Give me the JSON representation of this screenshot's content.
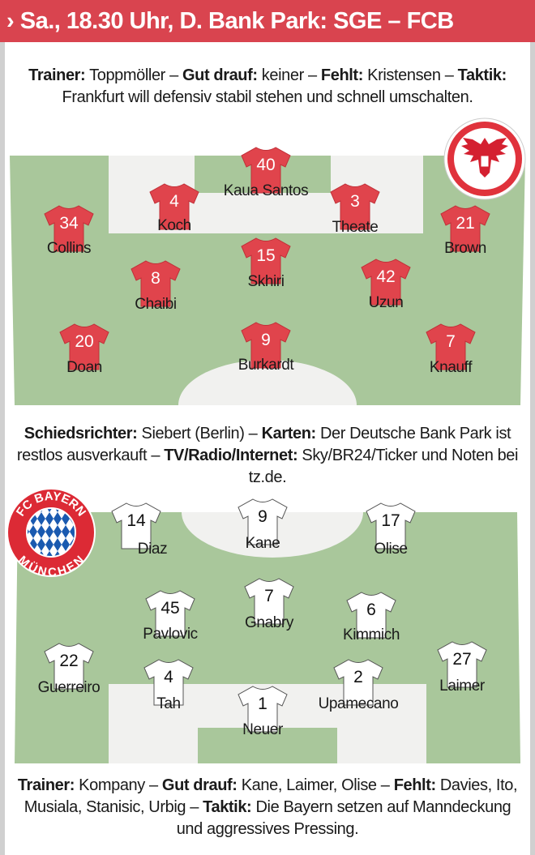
{
  "header": {
    "arrow": "›",
    "title": "Sa., 18.30 Uhr, D. Bank Park: SGE – FCB"
  },
  "frankfurt_info": [
    {
      "label": "Trainer:",
      "text": " Toppmöller – "
    },
    {
      "label": "Gut drauf:",
      "text": " keiner – "
    },
    {
      "label": "Fehlt:",
      "text": " Kristensen – "
    },
    {
      "label": "Taktik:",
      "text": " Frankfurt will defensiv stabil stehen und schnell umschalten."
    }
  ],
  "match_info": [
    {
      "label": "Schiedsrichter:",
      "text": " Siebert (Berlin) – "
    },
    {
      "label": "Karten:",
      "text": " Der Deutsche Bank Park ist restlos ausverkauft – "
    },
    {
      "label": "TV/Radio/Internet:",
      "text": " Sky/BR24/Ticker und Noten bei tz.de."
    }
  ],
  "bayern_info": [
    {
      "label": "Trainer:",
      "text": " Kompany – "
    },
    {
      "label": "Gut drauf:",
      "text": " Kane, Laimer, Olise – "
    },
    {
      "label": "Fehlt:",
      "text": " Davies, Ito, Musiala, Stanisic, Urbig – "
    },
    {
      "label": "Taktik:",
      "text": " Die Bayern setzen auf Manndeckung und aggressives Pressing."
    }
  ],
  "colors": {
    "header": "#d9444f",
    "frankfurt_shirt": "#e0444c",
    "bayern_shirt": "#ffffff",
    "pitch": "#a9c79b",
    "box": "#f1f1ef"
  },
  "logos": {
    "frankfurt": "Eintracht Frankfurt eagle crest",
    "bayern": "FC BAYERN MÜNCHEN"
  },
  "frankfurt_players": [
    {
      "number": "40",
      "name": "Kaua Santos"
    },
    {
      "number": "4",
      "name": "Koch"
    },
    {
      "number": "3",
      "name": "Theate"
    },
    {
      "number": "34",
      "name": "Collins"
    },
    {
      "number": "21",
      "name": "Brown"
    },
    {
      "number": "15",
      "name": "Skhiri"
    },
    {
      "number": "8",
      "name": "Chaibi"
    },
    {
      "number": "42",
      "name": "Uzun"
    },
    {
      "number": "20",
      "name": "Doan"
    },
    {
      "number": "9",
      "name": "Burkardt"
    },
    {
      "number": "7",
      "name": "Knauff"
    }
  ],
  "bayern_players": [
    {
      "number": "14",
      "name": "Diaz"
    },
    {
      "number": "9",
      "name": "Kane"
    },
    {
      "number": "17",
      "name": "Olise"
    },
    {
      "number": "45",
      "name": "Pavlovic"
    },
    {
      "number": "7",
      "name": "Gnabry"
    },
    {
      "number": "6",
      "name": "Kimmich"
    },
    {
      "number": "22",
      "name": "Guerreiro"
    },
    {
      "number": "4",
      "name": "Tah"
    },
    {
      "number": "2",
      "name": "Upamecano"
    },
    {
      "number": "27",
      "name": "Laimer"
    },
    {
      "number": "1",
      "name": "Neuer"
    }
  ]
}
